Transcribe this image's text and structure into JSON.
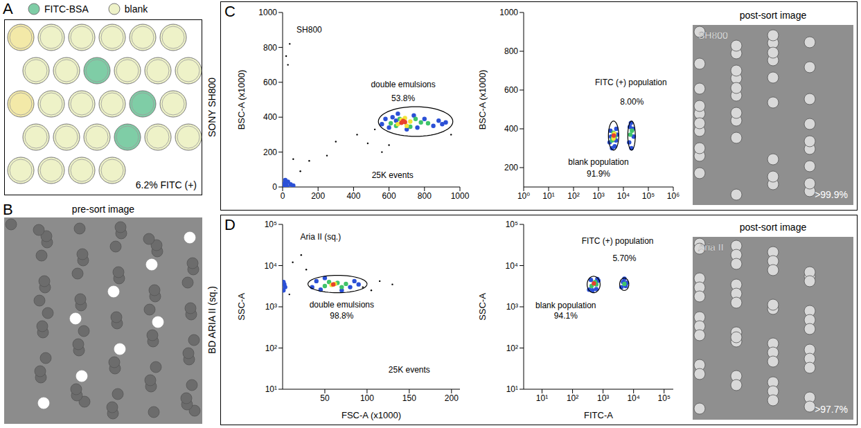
{
  "chart_data": [
    {
      "type": "scatter",
      "y_label": "BSC-A (x1000)",
      "xlim": [
        0,
        1000
      ],
      "xticks": [
        0,
        200,
        400,
        600,
        800,
        1000
      ],
      "ylim": [
        0,
        1000
      ],
      "yticks": [
        0,
        200,
        400,
        600,
        800,
        1000
      ],
      "series": [
        {
          "color": "#000000",
          "marker": "dot",
          "x": [
            20,
            40,
            150,
            300,
            420,
            480,
            520,
            560,
            600,
            950,
            100,
            250,
            30,
            60
          ],
          "y": [
            750,
            820,
            150,
            260,
            300,
            250,
            330,
            200,
            240,
            300,
            90,
            180,
            700,
            160
          ]
        },
        {
          "color": "#2b50d6",
          "marker": "circle",
          "x": [
            5,
            10,
            20,
            30,
            45,
            60,
            15,
            25,
            560,
            580,
            600,
            620,
            640,
            760,
            800,
            850,
            880,
            900,
            920,
            700,
            650,
            740
          ],
          "y": [
            5,
            20,
            10,
            30,
            15,
            8,
            40,
            0,
            360,
            390,
            340,
            400,
            380,
            340,
            390,
            350,
            380,
            360,
            370,
            330,
            420,
            410
          ]
        },
        {
          "color": "#3fc46a",
          "marker": "circle",
          "x": [
            610,
            640,
            660,
            720,
            750,
            780,
            820
          ],
          "y": [
            365,
            350,
            390,
            345,
            390,
            370,
            365
          ]
        },
        {
          "color": "#f2e33a",
          "marker": "circle",
          "x": [
            650,
            670,
            700,
            720,
            690
          ],
          "y": [
            360,
            385,
            350,
            375,
            395
          ]
        },
        {
          "color": "#e8412c",
          "marker": "circle",
          "x": [
            670,
            690,
            680
          ],
          "y": [
            368,
            372,
            378
          ]
        }
      ],
      "gates": [
        {
          "x": [
            540,
            960
          ],
          "y": [
            290,
            460
          ]
        }
      ],
      "annotations": [
        {
          "text": "SH800",
          "x": 150,
          "y": 900
        },
        {
          "text": "double emulsions",
          "x": 680,
          "y": 590
        },
        {
          "text": "53.8%",
          "x": 680,
          "y": 510
        },
        {
          "text": "25K events",
          "x": 620,
          "y": 70
        }
      ]
    },
    {
      "type": "scatter",
      "log": "x",
      "y_label": "BSC-A (x1000)",
      "xlim": [
        1,
        1000000
      ],
      "xticks": [
        {
          "value": 1,
          "label": "10⁰"
        },
        {
          "value": 10,
          "label": "10¹"
        },
        {
          "value": 100,
          "label": "10²"
        },
        {
          "value": 1000,
          "label": "10³"
        },
        {
          "value": 10000,
          "label": "10⁴"
        },
        {
          "value": 100000,
          "label": "10⁵"
        },
        {
          "value": 1000000,
          "label": "10⁶"
        }
      ],
      "ylim": [
        100,
        1000
      ],
      "yticks": [
        200,
        400,
        600,
        800,
        1000
      ],
      "series": [
        {
          "color": "#2b50d6",
          "marker": "circle",
          "x": [
            2800,
            3000,
            3500,
            4500,
            5200,
            5500,
            3200,
            5000,
            17000,
            18000,
            21000,
            24000,
            26000,
            20000
          ],
          "y": [
            330,
            390,
            300,
            310,
            400,
            370,
            360,
            340,
            330,
            410,
            300,
            400,
            360,
            430
          ]
        },
        {
          "color": "#3fc46a",
          "marker": "circle",
          "x": [
            3500,
            4000,
            4500,
            3800,
            19000,
            22000
          ],
          "y": [
            340,
            380,
            360,
            355,
            370,
            390
          ]
        },
        {
          "color": "#f2e33a",
          "marker": "circle",
          "x": [
            4000,
            4300
          ],
          "y": [
            350,
            375
          ]
        },
        {
          "color": "#e8412c",
          "marker": "circle",
          "x": [
            4100
          ],
          "y": [
            365
          ]
        }
      ],
      "gates": [
        {
          "x": [
            2500,
            6500
          ],
          "y": [
            290,
            440
          ]
        },
        {
          "x": [
            15000,
            30000
          ],
          "y": [
            290,
            440
          ]
        }
      ],
      "annotations": [
        {
          "text": "FITC (+) population",
          "x": 20000,
          "y": 640
        },
        {
          "text": "8.00%",
          "x": 22000,
          "y": 540
        },
        {
          "text": "blank population",
          "x": 1000,
          "y": 230
        },
        {
          "text": "91.9%",
          "x": 1000,
          "y": 170
        }
      ]
    },
    {
      "type": "scatter",
      "log": "y",
      "x_label": "FSC-A (x1000)",
      "y_label": "SSC-A",
      "xlim": [
        0,
        210
      ],
      "xticks": [
        50,
        100,
        150,
        200
      ],
      "ylim": [
        10,
        100000
      ],
      "yticks": [
        {
          "value": 10,
          "label": "10¹"
        },
        {
          "value": 100,
          "label": "10²"
        },
        {
          "value": 1000,
          "label": "10³"
        },
        {
          "value": 10000,
          "label": "10⁴"
        },
        {
          "value": 100000,
          "label": "10⁵"
        }
      ],
      "series": [
        {
          "color": "#000000",
          "marker": "dot",
          "x": [
            12,
            22,
            95,
            105,
            115,
            8,
            28,
            130
          ],
          "y": [
            12000,
            18000,
            3000,
            2500,
            4200,
            2000,
            8000,
            3500
          ]
        },
        {
          "color": "#2b50d6",
          "marker": "circle",
          "x": [
            1,
            2,
            1,
            3,
            35,
            40,
            45,
            80,
            85,
            90,
            50,
            70
          ],
          "y": [
            2500,
            3500,
            4000,
            3000,
            3000,
            4200,
            2600,
            3000,
            4200,
            3500,
            5000,
            2500
          ]
        },
        {
          "color": "#3fc46a",
          "marker": "circle",
          "x": [
            50,
            55,
            65,
            70,
            75
          ],
          "y": [
            3200,
            4000,
            3800,
            3000,
            3600
          ]
        },
        {
          "color": "#f2e33a",
          "marker": "circle",
          "x": [
            58,
            62
          ],
          "y": [
            3400,
            3600
          ]
        },
        {
          "color": "#e8412c",
          "marker": "circle",
          "x": [
            60
          ],
          "y": [
            3500
          ]
        }
      ],
      "gates": [
        {
          "x": [
            30,
            100
          ],
          "y": [
            2200,
            5800
          ]
        }
      ],
      "annotations": [
        {
          "text": "Aria II (sq.)",
          "x": 45,
          "y": 50000
        },
        {
          "text": "double emulsions",
          "x": 70,
          "y": 1150
        },
        {
          "text": "98.8%",
          "x": 70,
          "y": 600
        },
        {
          "text": "25K events",
          "x": 150,
          "y": 30
        }
      ]
    },
    {
      "type": "scatter",
      "log": true,
      "x_label": "FITC-A",
      "y_label": "SSC-A",
      "xlim": [
        2.5,
        200000
      ],
      "xticks": [
        {
          "value": 10,
          "label": "10¹"
        },
        {
          "value": 100,
          "label": "10²"
        },
        {
          "value": 1000,
          "label": "10³"
        },
        {
          "value": 10000,
          "label": "10⁴"
        },
        {
          "value": 100000,
          "label": "10⁵"
        }
      ],
      "ylim": [
        10,
        100000
      ],
      "yticks": [
        {
          "value": 10,
          "label": "10¹"
        },
        {
          "value": 100,
          "label": "10²"
        },
        {
          "value": 1000,
          "label": "10³"
        },
        {
          "value": 10000,
          "label": "10⁴"
        },
        {
          "value": 100000,
          "label": "10⁵"
        }
      ],
      "series": [
        {
          "color": "#2b50d6",
          "marker": "circle",
          "x": [
            350,
            400,
            600,
            700,
            450,
            650,
            4000,
            4500,
            5500,
            6000,
            5000
          ],
          "y": [
            2600,
            4500,
            2700,
            4300,
            2500,
            4700,
            3000,
            4000,
            3200,
            3800,
            4800
          ]
        },
        {
          "color": "#3fc46a",
          "marker": "circle",
          "x": [
            420,
            550,
            600,
            5000
          ],
          "y": [
            3200,
            4000,
            3500,
            3600
          ]
        },
        {
          "color": "#e8412c",
          "marker": "circle",
          "x": [
            500
          ],
          "y": [
            3700
          ]
        }
      ],
      "gates": [
        {
          "x": [
            300,
            800
          ],
          "y": [
            2200,
            5500
          ]
        },
        {
          "x": [
            3500,
            7000
          ],
          "y": [
            2500,
            5000
          ]
        }
      ],
      "annotations": [
        {
          "text": "FITC (+) population",
          "x": 3000,
          "y": 40000
        },
        {
          "text": "5.70%",
          "x": 5000,
          "y": 15000
        },
        {
          "text": "blank population",
          "x": 60,
          "y": 1100
        },
        {
          "text": "94.1%",
          "x": 60,
          "y": 600
        }
      ]
    }
  ],
  "panel_A": {
    "letter": "A",
    "legend": [
      {
        "label": "FITC-BSA",
        "color": "#7fcda6"
      },
      {
        "label": "blank",
        "color": "#eef2c8"
      }
    ],
    "note": "6.2% FITC (+)"
  },
  "panel_B": {
    "letter": "B",
    "title": "pre-sort image"
  },
  "panel_C": {
    "letter": "C",
    "row_label": "SONY SH800",
    "image_title": "post-sort image",
    "image_label": "SH800",
    "purity": ">99.9%"
  },
  "panel_D": {
    "letter": "D",
    "row_label": "BD ARIA II (sq.)",
    "image_title": "post-sort image",
    "image_label": "Aria II",
    "purity": ">97.7%"
  }
}
